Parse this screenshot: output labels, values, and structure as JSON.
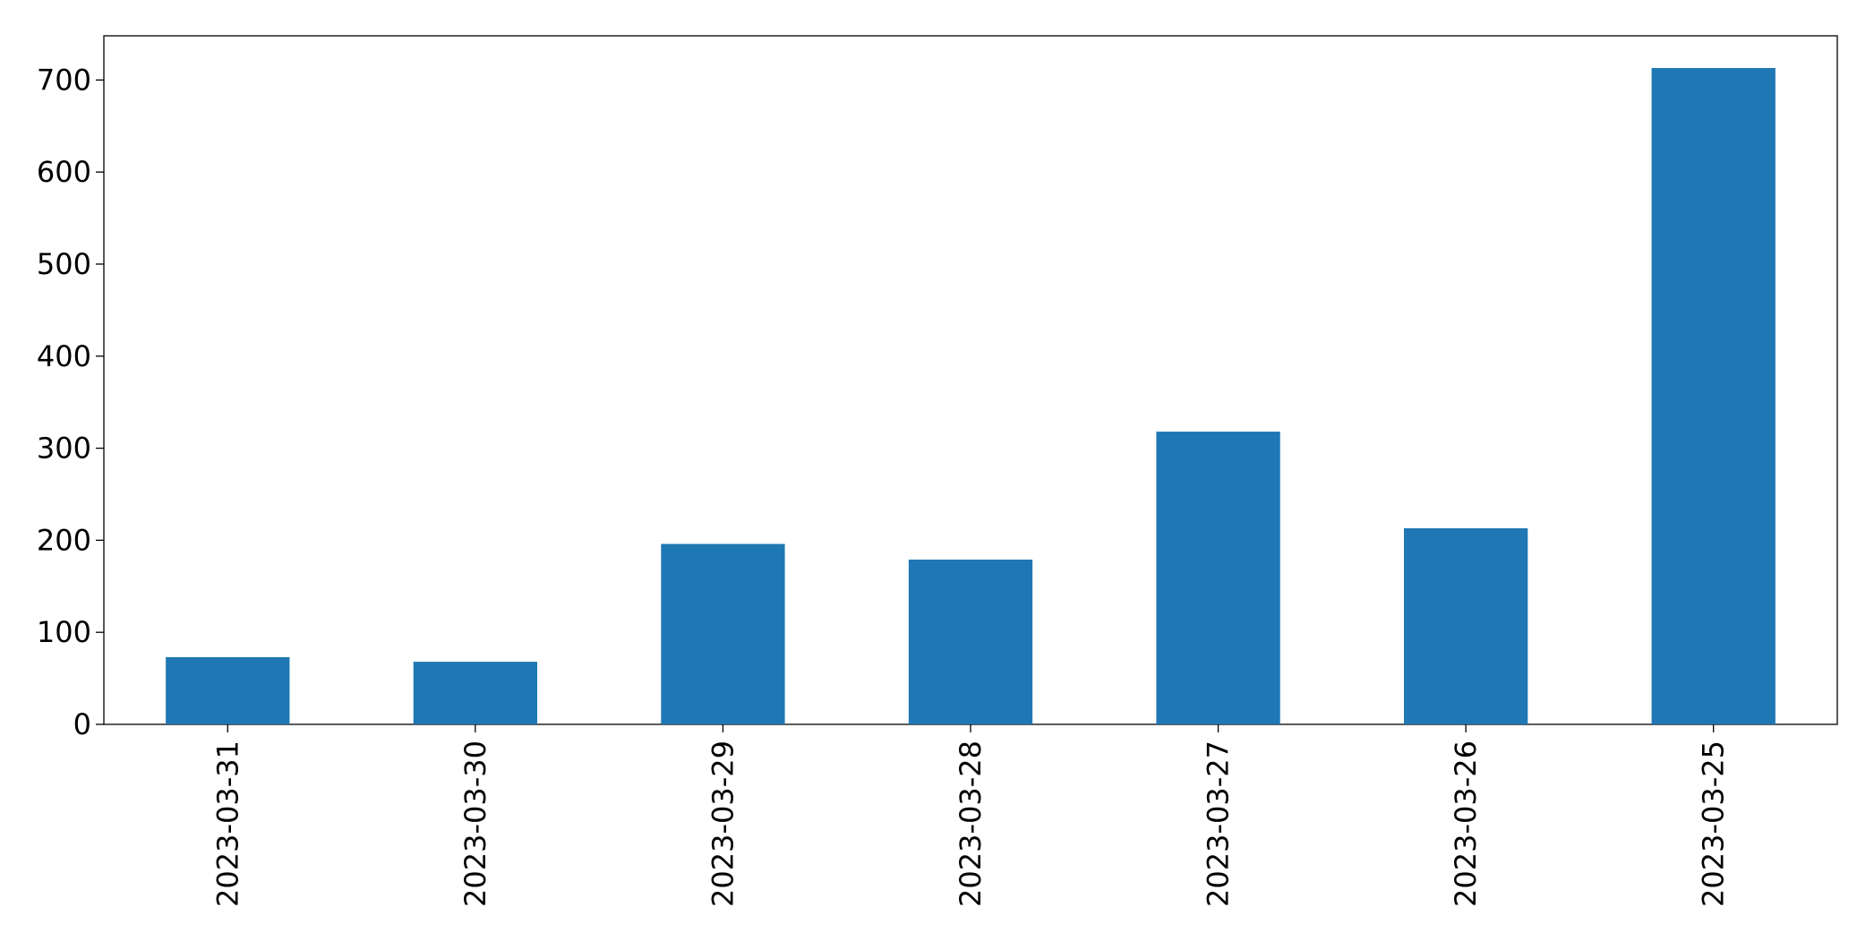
{
  "chart_data": {
    "type": "bar",
    "categories": [
      "2023-03-31",
      "2023-03-30",
      "2023-03-29",
      "2023-03-28",
      "2023-03-27",
      "2023-03-26",
      "2023-03-25"
    ],
    "values": [
      73,
      68,
      196,
      179,
      318,
      213,
      713
    ],
    "color": "#1f77b4",
    "ylim": [
      0,
      748
    ],
    "yticks": [
      0,
      100,
      200,
      300,
      400,
      500,
      600,
      700
    ],
    "grid": false
  }
}
